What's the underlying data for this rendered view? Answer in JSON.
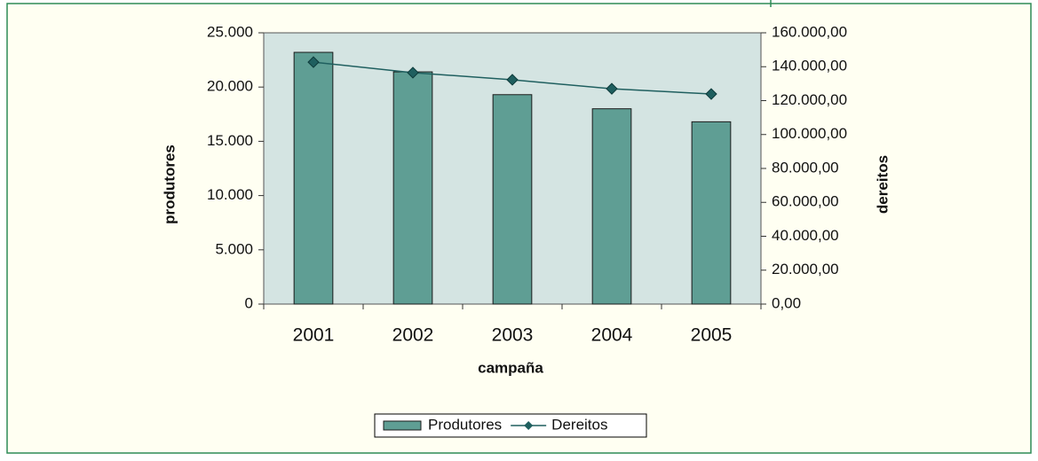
{
  "chart_data": {
    "type": "bar",
    "categories": [
      "2001",
      "2002",
      "2003",
      "2004",
      "2005"
    ],
    "x_label": "campaña",
    "y_label": "produtores",
    "y2_label": "dereitos",
    "series": [
      {
        "name": "Produtores",
        "type": "bar",
        "color": "#5f9e94",
        "values": [
          23200,
          21400,
          19300,
          18000,
          16800
        ]
      },
      {
        "name": "Dereitos",
        "type": "line",
        "axis": "y2",
        "color": "#1f5f5f",
        "values": [
          142700,
          136500,
          132300,
          127000,
          123900
        ]
      }
    ],
    "ylim": [
      0,
      25000
    ],
    "yticks": [
      0,
      {
        "value": 5000,
        "label": "5.000"
      },
      {
        "value": 10000,
        "label": "10.000"
      },
      {
        "value": 15000,
        "label": "15.000"
      },
      {
        "value": 20000,
        "label": "20.000"
      },
      {
        "value": 25000,
        "label": "25.000"
      }
    ],
    "y2lim": [
      0,
      160000
    ],
    "y2ticks": [
      {
        "value": 0,
        "label": "0,00"
      },
      {
        "value": 20000,
        "label": "20.000,00"
      },
      {
        "value": 40000,
        "label": "40.000,00"
      },
      {
        "value": 60000,
        "label": "60.000,00"
      },
      {
        "value": 80000,
        "label": "80.000,00"
      },
      {
        "value": 100000,
        "label": "100.000,00"
      },
      {
        "value": 120000,
        "label": "120.000,00"
      },
      {
        "value": 140000,
        "label": "140.000,00"
      },
      {
        "value": 160000,
        "label": "160.000,00"
      }
    ],
    "legend": "bottom"
  }
}
